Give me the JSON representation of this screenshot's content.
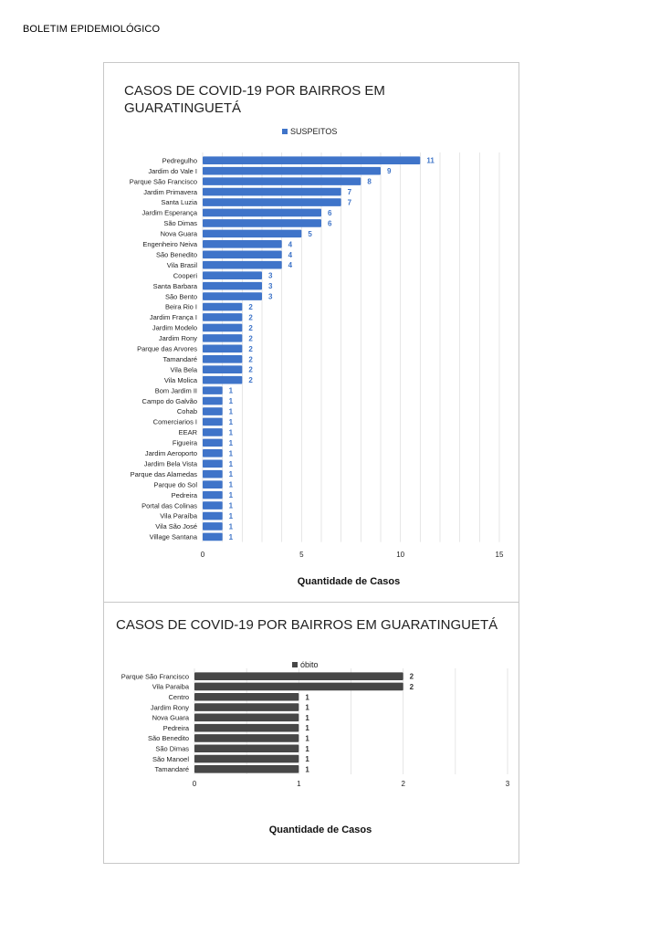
{
  "header": {
    "title": "BOLETIM EPIDEMIOLÓGICO"
  },
  "colors": {
    "suspeitos": "#3f74c9",
    "obito": "#474747",
    "grid": "#dcdcdc",
    "frame": "#c8c8c8"
  },
  "chart_data": [
    {
      "type": "bar",
      "orientation": "horizontal",
      "title_lines": [
        "CASOS DE COVID-19 POR BAIRROS EM",
        "GUARATINGUETÁ"
      ],
      "xlabel": "Quantidade de Casos",
      "ylabel": "",
      "xlim": [
        0,
        15
      ],
      "xticks": [
        0,
        5,
        10,
        15
      ],
      "grid": true,
      "legend_position": "top-center",
      "categories": [
        "Pedregulho",
        "Jardim do Vale I",
        "Parque São Francisco",
        "Jardim Primavera",
        "Santa Luzia",
        "Jardim Esperança",
        "São Dimas",
        "Nova Guara",
        "Engenheiro Neiva",
        "São Benedito",
        "Vila Brasil",
        "Cooperi",
        "Santa Barbara",
        "São Bento",
        "Beira Rio I",
        "Jardim França I",
        "Jardim Modelo",
        "Jardim Rony",
        "Parque das Arvores",
        "Tamandaré",
        "Vila Bela",
        "Vila Molica",
        "Bom Jardim II",
        "Campo do Galvão",
        "Cohab",
        "Comerciarios I",
        "EEAR",
        "Figueira",
        "Jardim Aeroporto",
        "Jardim Bela Vista",
        "Parque das Alamedas",
        "Parque do Sol",
        "Pedreira",
        "Portal das Colinas",
        "Vila Paraíba",
        "Vila São José",
        "Village Santana"
      ],
      "series": [
        {
          "name": "SUSPEITOS",
          "color": "#3f74c9",
          "values": [
            11,
            9,
            8,
            7,
            7,
            6,
            6,
            5,
            4,
            4,
            4,
            3,
            3,
            3,
            2,
            2,
            2,
            2,
            2,
            2,
            2,
            2,
            1,
            1,
            1,
            1,
            1,
            1,
            1,
            1,
            1,
            1,
            1,
            1,
            1,
            1,
            1
          ]
        }
      ]
    },
    {
      "type": "bar",
      "orientation": "horizontal",
      "title_lines": [
        "CASOS DE COVID-19 POR BAIRROS EM GUARATINGUETÁ"
      ],
      "xlabel": "Quantidade de Casos",
      "ylabel": "",
      "xlim": [
        0,
        3
      ],
      "xticks": [
        0,
        1,
        2,
        3
      ],
      "grid": true,
      "legend_position": "top-center",
      "categories": [
        "Parque São Francisco",
        "Vila Paraiba",
        "Centro",
        "Jardim Rony",
        "Nova Guara",
        "Pedreira",
        "São Benedito",
        "São Dimas",
        "São Manoel",
        "Tamandaré"
      ],
      "series": [
        {
          "name": "óbito",
          "color": "#474747",
          "values": [
            2,
            2,
            1,
            1,
            1,
            1,
            1,
            1,
            1,
            1
          ]
        }
      ]
    }
  ]
}
